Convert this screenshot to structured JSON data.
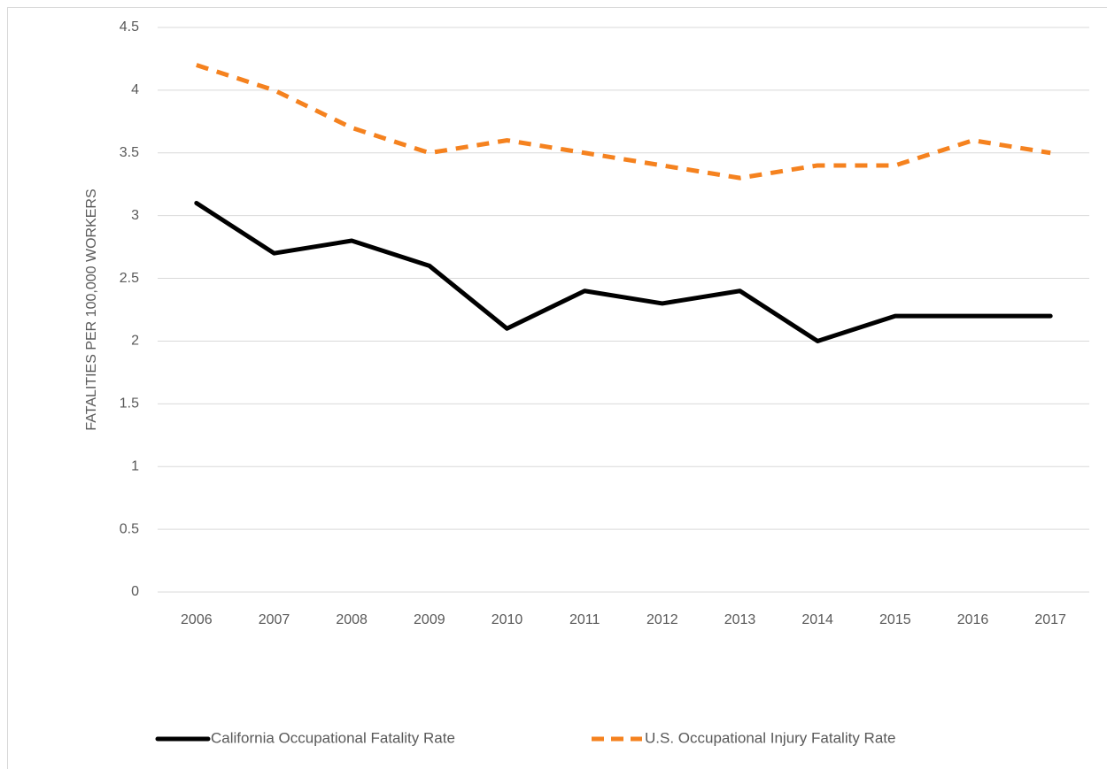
{
  "chart_data": {
    "type": "line",
    "y_label": "FATALITIES PER 100,000 WORKERS",
    "categories": [
      "2006",
      "2007",
      "2008",
      "2009",
      "2010",
      "2011",
      "2012",
      "2013",
      "2014",
      "2015",
      "2016",
      "2017"
    ],
    "series": [
      {
        "name": "California Occupational Fatality Rate",
        "color": "#000000",
        "dashed": false,
        "values": [
          3.1,
          2.7,
          2.8,
          2.6,
          2.1,
          2.4,
          2.3,
          2.4,
          2.0,
          2.2,
          2.2,
          2.2
        ]
      },
      {
        "name": "U.S. Occupational Injury Fatality Rate",
        "color": "#F5821F",
        "dashed": true,
        "values": [
          4.2,
          4.0,
          3.7,
          3.5,
          3.6,
          3.5,
          3.4,
          3.3,
          3.4,
          3.4,
          3.6,
          3.5
        ]
      }
    ],
    "ylim": [
      0,
      4.5
    ],
    "yticks": [
      0,
      0.5,
      1,
      1.5,
      2,
      2.5,
      3,
      3.5,
      4,
      4.5
    ],
    "grid": true,
    "legend": "bottom"
  }
}
